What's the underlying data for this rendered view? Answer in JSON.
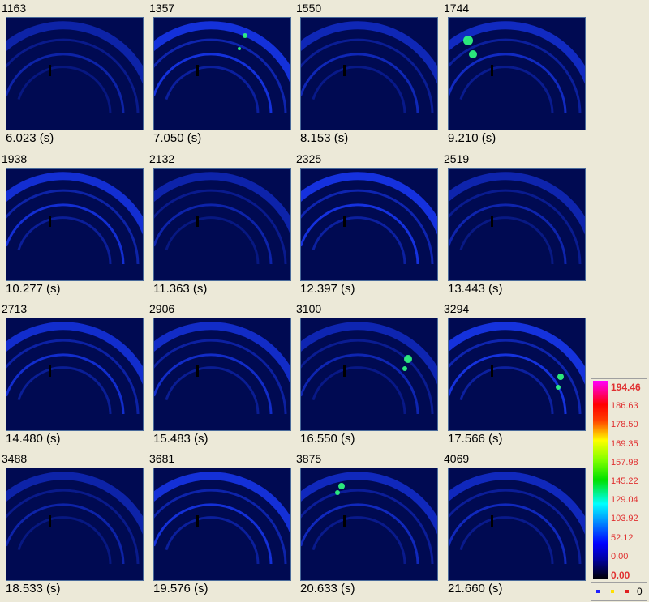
{
  "frames": [
    {
      "frame": "1163",
      "time": "6.023 (s)"
    },
    {
      "frame": "1357",
      "time": "7.050 (s)"
    },
    {
      "frame": "1550",
      "time": "8.153 (s)"
    },
    {
      "frame": "1744",
      "time": "9.210 (s)"
    },
    {
      "frame": "1938",
      "time": "10.277 (s)"
    },
    {
      "frame": "2132",
      "time": "11.363 (s)"
    },
    {
      "frame": "2325",
      "time": "12.397 (s)"
    },
    {
      "frame": "2519",
      "time": "13.443 (s)"
    },
    {
      "frame": "2713",
      "time": "14.480 (s)"
    },
    {
      "frame": "2906",
      "time": "15.483 (s)"
    },
    {
      "frame": "3100",
      "time": "16.550 (s)"
    },
    {
      "frame": "3294",
      "time": "17.566 (s)"
    },
    {
      "frame": "3488",
      "time": "18.533 (s)"
    },
    {
      "frame": "3681",
      "time": "19.576 (s)"
    },
    {
      "frame": "3875",
      "time": "20.633 (s)"
    },
    {
      "frame": "4069",
      "time": "21.660 (s)"
    }
  ],
  "legend": {
    "levels": [
      "194.46",
      "186.63",
      "178.50",
      "169.35",
      "157.98",
      "145.22",
      "129.04",
      "103.92",
      "52.12",
      "0.00",
      "0.00"
    ],
    "footer_value": "0",
    "marker_colors": [
      "#2020ff",
      "#ffe000",
      "#e02020"
    ]
  },
  "colors": {
    "thumb_bg": "#000a52",
    "ring": "#1a3cff",
    "hotspot": "#30ff80"
  }
}
